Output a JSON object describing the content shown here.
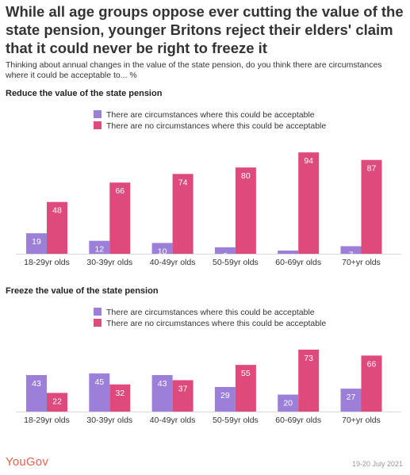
{
  "title": "While all age groups oppose ever cutting the value of the state pension, younger Britons reject their elders' claim that it could never be right to freeze it",
  "subtitle": "Thinking about annual changes in the value of the state pension, do you think there are circumstances where it could be acceptable to... %",
  "footer": {
    "logo": "YouGov",
    "date": "19-20 July 2021"
  },
  "colors": {
    "acceptable": "#9b7fd8",
    "never": "#de4a7c"
  },
  "chart_data": [
    {
      "type": "bar",
      "title": "Reduce the value of the state pension",
      "categories": [
        "18-29yr olds",
        "30-39yr olds",
        "40-49yr olds",
        "50-59yr olds",
        "60-69yr olds",
        "70+yr olds"
      ],
      "series": [
        {
          "name": "There are circumstances where this could be acceptable",
          "values": [
            19,
            12,
            10,
            6,
            3,
            7
          ]
        },
        {
          "name": "There are no circumstances where this could be acceptable",
          "values": [
            48,
            66,
            74,
            80,
            94,
            87
          ]
        }
      ],
      "ylim": [
        0,
        100
      ]
    },
    {
      "type": "bar",
      "title": "Freeze the value of the state pension",
      "categories": [
        "18-29yr olds",
        "30-39yr olds",
        "40-49yr olds",
        "50-59yr olds",
        "60-69yr olds",
        "70+yr olds"
      ],
      "series": [
        {
          "name": "There are circumstances where this could be acceptable",
          "values": [
            43,
            45,
            43,
            29,
            20,
            27
          ]
        },
        {
          "name": "There are no circumstances where this could be acceptable",
          "values": [
            22,
            32,
            37,
            55,
            73,
            66
          ]
        }
      ],
      "ylim": [
        0,
        100
      ]
    }
  ]
}
